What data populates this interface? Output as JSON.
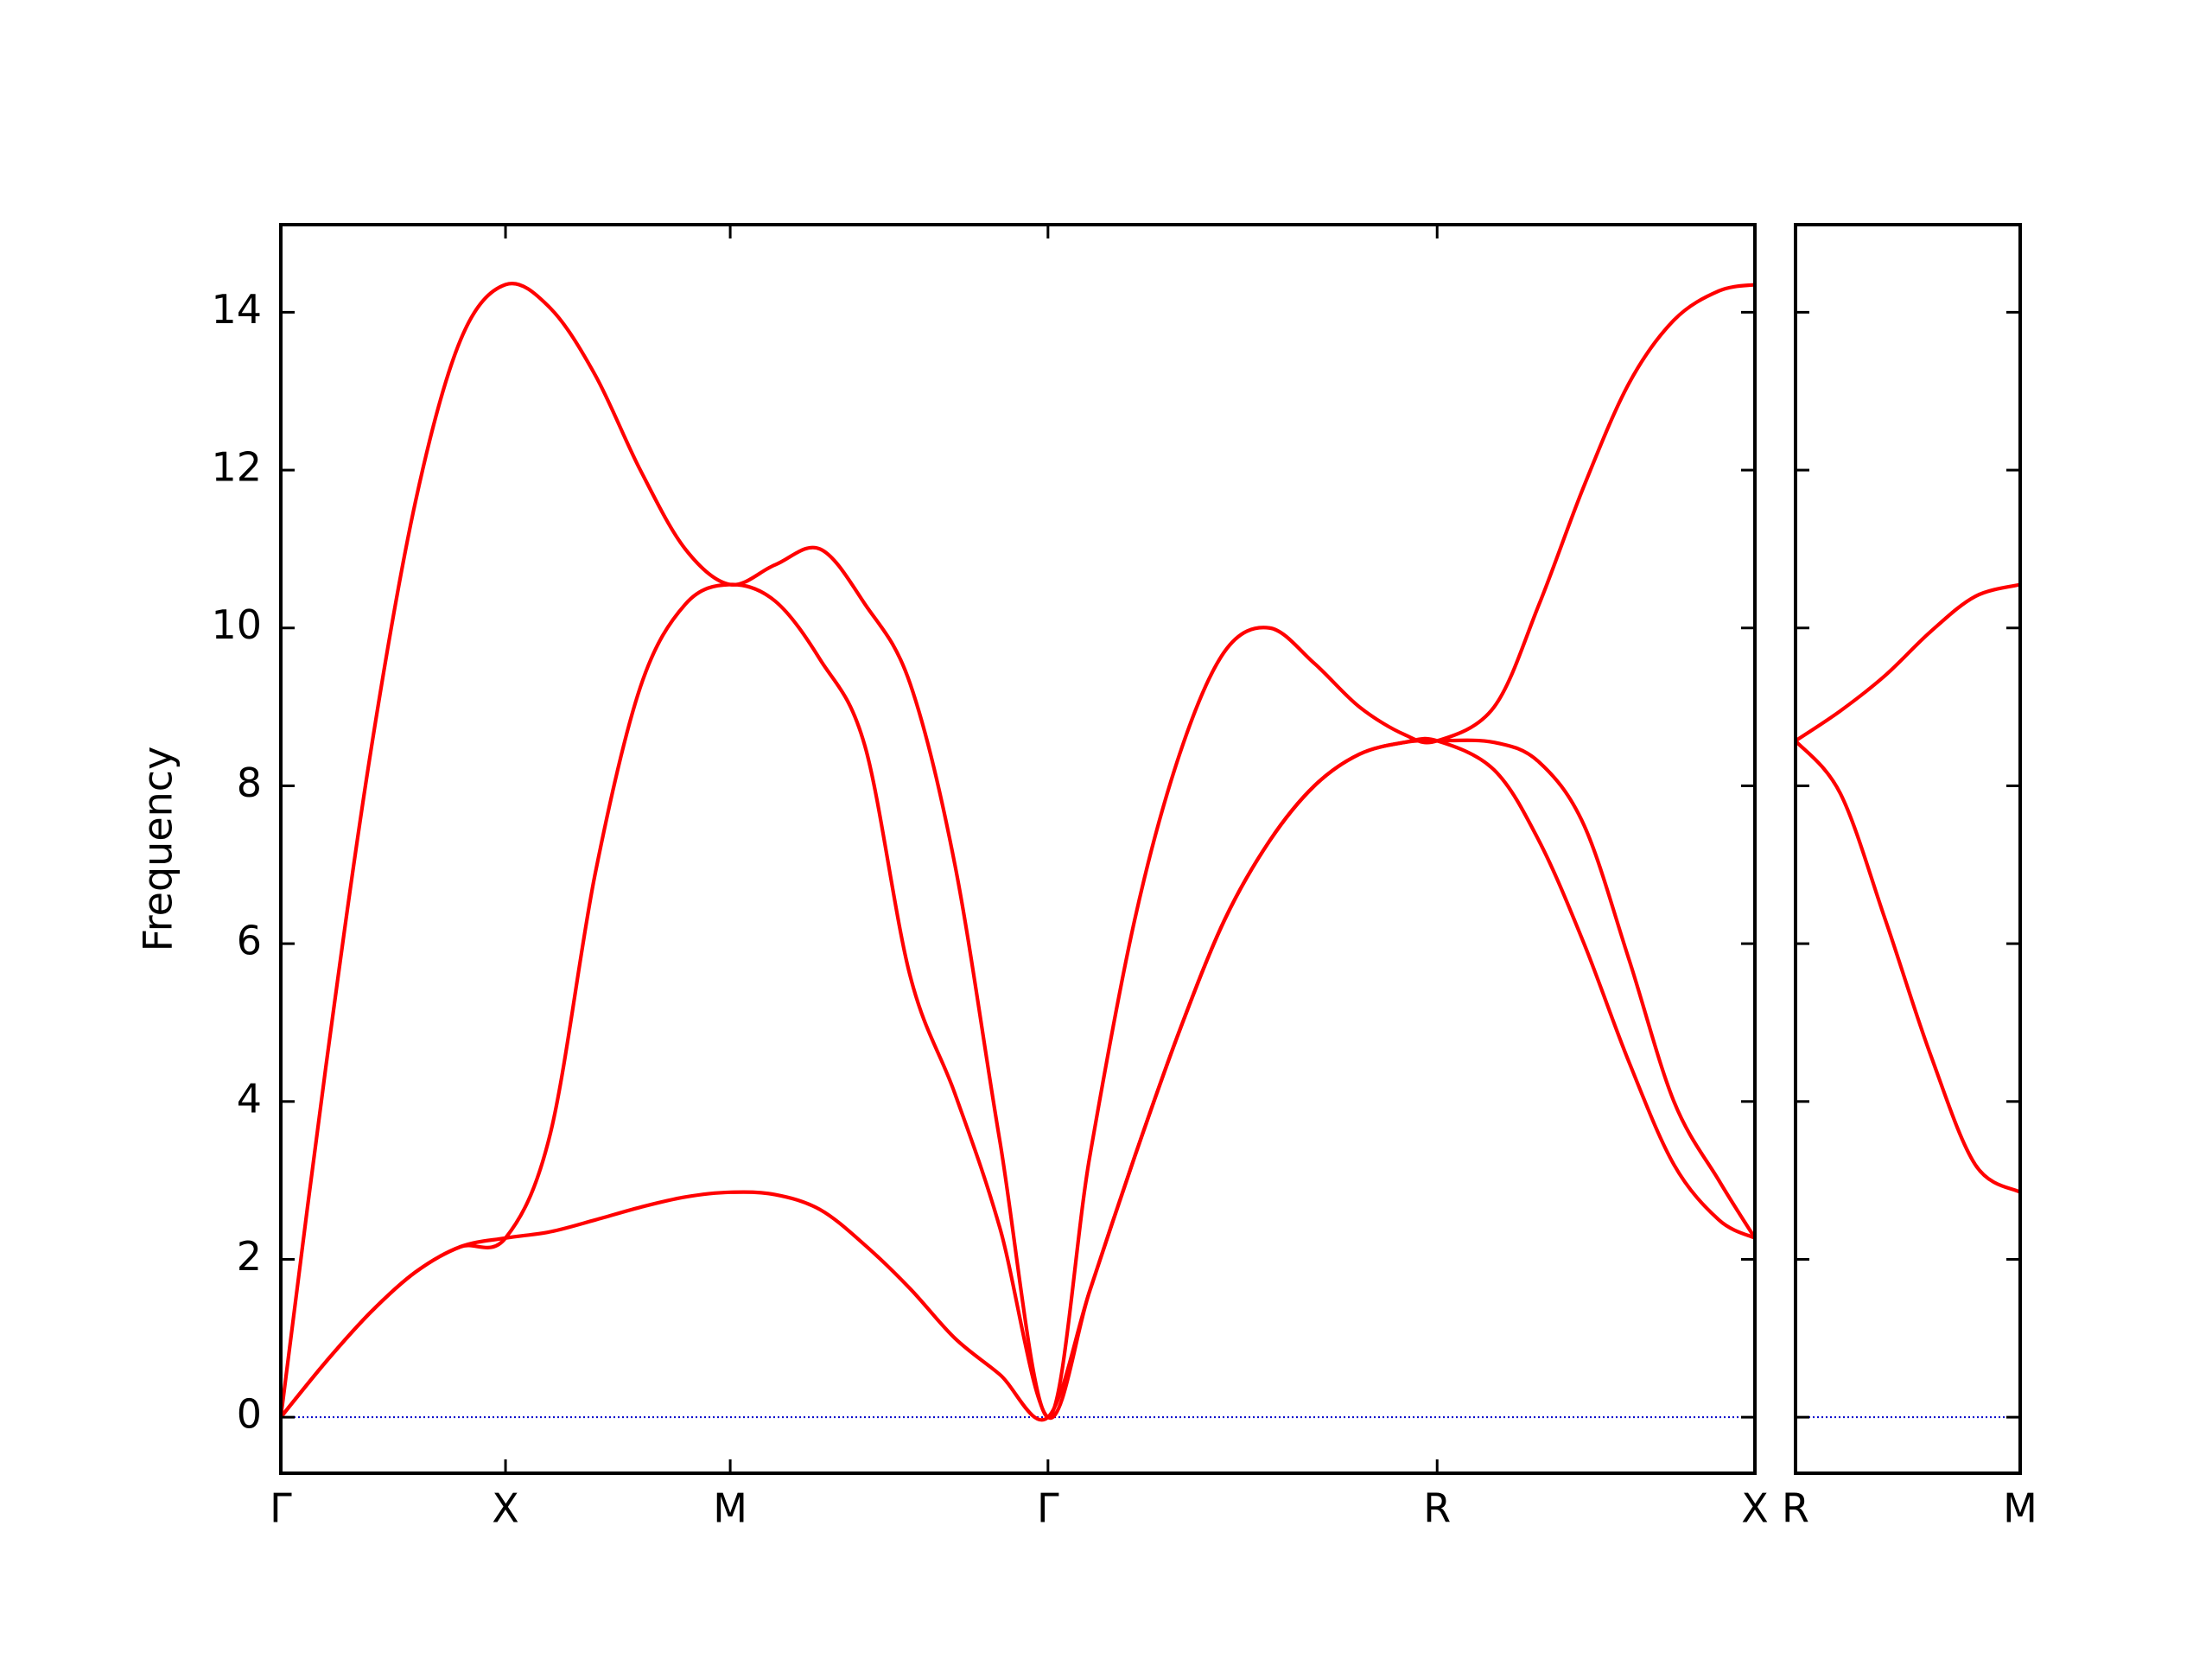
{
  "chart_data": [
    {
      "type": "line",
      "ylabel": "Frequency",
      "x": [
        0,
        0.1,
        0.2,
        0.3,
        0.4,
        0.5,
        0.6,
        0.7,
        0.8,
        0.9,
        1.0,
        1.1,
        1.2,
        1.3,
        1.4,
        1.5,
        1.6,
        1.7071,
        1.8,
        1.9,
        2.0,
        2.1,
        2.2,
        2.3,
        2.4,
        2.5,
        2.5731,
        2.7,
        2.8,
        2.9,
        3.0,
        3.1,
        3.2,
        3.2802
      ],
      "series": [
        {
          "color": "#ff0000",
          "values": [
            0,
            0.7,
            1.33,
            1.84,
            2.16,
            2.27,
            2.35,
            2.5,
            2.66,
            2.79,
            2.85,
            2.82,
            2.63,
            2.18,
            1.63,
            1.0,
            0.54,
            0,
            1.6,
            3.3,
            4.9,
            6.3,
            7.3,
            8.0,
            8.4,
            8.55,
            8.57,
            8.2,
            7.3,
            6.0,
            4.5,
            3.2,
            2.5,
            2.27
          ]
        },
        {
          "color": "#ff0000",
          "values": [
            0,
            0.7,
            1.33,
            1.84,
            2.16,
            2.27,
            3.6,
            6.9,
            9.25,
            10.3,
            10.55,
            10.34,
            9.6,
            8.5,
            5.6,
            4.1,
            2.4,
            0,
            1.6,
            3.3,
            4.9,
            6.3,
            7.3,
            8.0,
            8.4,
            8.55,
            8.57,
            8.55,
            8.3,
            7.5,
            5.8,
            4.0,
            3.0,
            2.27
          ]
        },
        {
          "color": "#ff0000",
          "values": [
            0,
            4.43,
            8.43,
            11.61,
            13.65,
            14.35,
            14.05,
            13.2,
            12.0,
            11.0,
            10.55,
            10.8,
            11.0,
            10.3,
            9.3,
            7.0,
            3.5,
            0,
            3.3,
            6.3,
            8.4,
            9.7,
            10.0,
            9.55,
            9.0,
            8.65,
            8.57,
            9.0,
            10.3,
            11.8,
            13.1,
            13.9,
            14.27,
            14.35
          ]
        }
      ],
      "xlim": [
        0,
        3.2802
      ],
      "xticks": [
        {
          "value": 0,
          "label": "Γ"
        },
        {
          "value": 0.5,
          "label": "X"
        },
        {
          "value": 1.0,
          "label": "M"
        },
        {
          "value": 1.7071,
          "label": "Γ"
        },
        {
          "value": 2.5731,
          "label": "R"
        },
        {
          "value": 3.2802,
          "label": "X"
        }
      ],
      "ylim": [
        -0.71,
        15.11
      ],
      "yticks": [
        0,
        2,
        4,
        6,
        8,
        10,
        12,
        14
      ],
      "show_ytick_labels": true,
      "zero_line_color": "#0000cc"
    },
    {
      "type": "line",
      "x": [
        0,
        0.1,
        0.2,
        0.3,
        0.4,
        0.5
      ],
      "series": [
        {
          "color": "#ff0000",
          "values": [
            8.57,
            7.9,
            6.3,
            4.6,
            3.2,
            2.85
          ]
        },
        {
          "color": "#ff0000",
          "values": [
            8.57,
            8.95,
            9.4,
            9.95,
            10.4,
            10.55
          ]
        }
      ],
      "xlim": [
        0,
        0.5
      ],
      "xticks": [
        {
          "value": 0,
          "label": "R"
        },
        {
          "value": 0.5,
          "label": "M"
        }
      ],
      "ylim": [
        -0.71,
        15.11
      ],
      "yticks": [
        0,
        2,
        4,
        6,
        8,
        10,
        12,
        14
      ],
      "show_ytick_labels": false,
      "zero_line_color": "#0000cc"
    }
  ]
}
